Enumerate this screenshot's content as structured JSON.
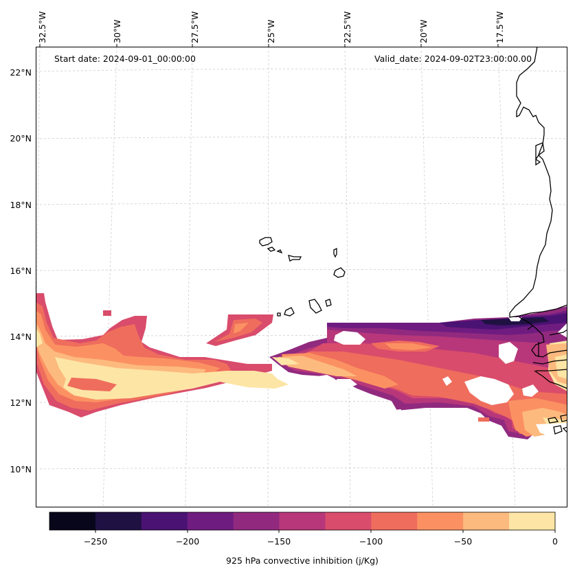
{
  "header": {
    "start_date": "Start date: 2024-09-01_00:00:00",
    "valid_date": "Valid_date: 2024-09-02T23:00:00.00"
  },
  "axes": {
    "longitude_labels": [
      "32.5°W",
      "30°W",
      "27.5°W",
      "25°W",
      "22.5°W",
      "20°W",
      "17.5°W"
    ],
    "latitude_labels": [
      "22°N",
      "20°N",
      "18°N",
      "16°N",
      "14°N",
      "12°N",
      "10°N"
    ]
  },
  "colorbar": {
    "title": "925 hPa convective inhibition (j/Kg)",
    "tick_labels": [
      "−250",
      "−200",
      "−150",
      "−100",
      "−50",
      "0"
    ],
    "levels": [
      -275,
      -250,
      -225,
      -200,
      -175,
      -150,
      -125,
      -100,
      -75,
      -50,
      -25,
      0
    ],
    "colors": [
      "#07061a",
      "#201143",
      "#4a1273",
      "#6f1c80",
      "#912a7f",
      "#b7377a",
      "#d94c6b",
      "#ef6d5d",
      "#fb9162",
      "#fdba7e",
      "#fde5a6"
    ]
  },
  "chart_data": {
    "type": "heatmap",
    "title": "925 hPa convective inhibition (j/Kg)",
    "variable": "925 hPa convective inhibition",
    "units": "j/Kg",
    "value_range": [
      -275,
      0
    ],
    "lon_range": [
      -32.5,
      -15.5
    ],
    "lat_range": [
      9,
      22.5
    ]
  }
}
